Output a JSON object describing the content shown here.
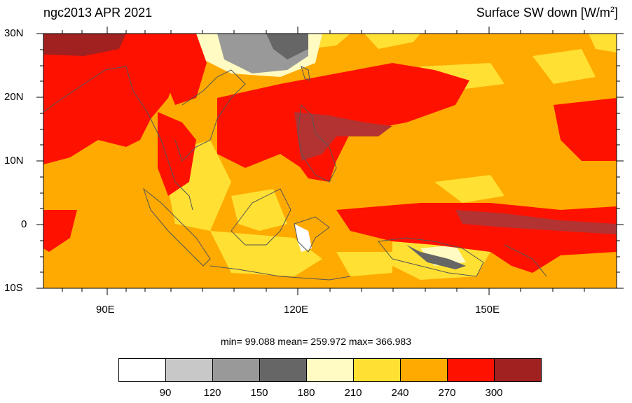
{
  "title_left": "ngc2013 APR 2021",
  "title_right_main": "Surface SW down [W/m",
  "title_right_sup": "2",
  "title_right_end": "]",
  "lat_labels": [
    "30N",
    "20N",
    "10N",
    "0",
    "10S"
  ],
  "lon_labels": [
    "90E",
    "120E",
    "150E"
  ],
  "stats": "min=  99.088  mean= 259.972  max= 366.983",
  "colorbar": {
    "colors": [
      "#ffffff",
      "#c8c8c8",
      "#999999",
      "#666666",
      "#fffbc2",
      "#ffe033",
      "#ffaa00",
      "#ff1100",
      "#a12020"
    ],
    "labels": [
      "90",
      "120",
      "150",
      "180",
      "210",
      "240",
      "270",
      "300"
    ]
  },
  "map": {
    "lon_range": [
      80,
      170
    ],
    "lat_range": [
      -10,
      30
    ],
    "background_color": "#ffaa00"
  }
}
